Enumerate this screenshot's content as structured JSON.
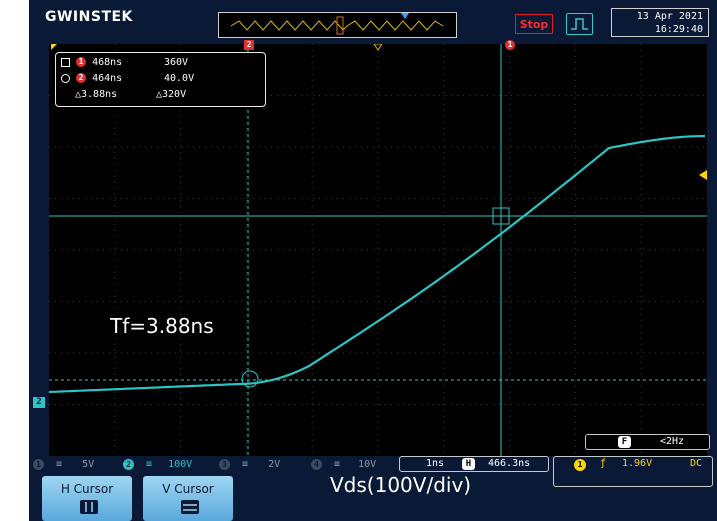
{
  "brand": "GWINSTEK",
  "header": {
    "run_state": "Stop",
    "trigger_mode_icon": "pulse-icon",
    "date": "13 Apr 2021",
    "time": "16:29:40"
  },
  "cursor_readout": {
    "cursor1": {
      "time": "468ns",
      "value": "360V"
    },
    "cursor2": {
      "time": "464ns",
      "value": "40.0V"
    },
    "delta": {
      "time": "△3.88ns",
      "value": "△320V"
    }
  },
  "annotations": {
    "tf": "Tf=3.88ns",
    "vds": "Vds(100V/div)"
  },
  "markers": {
    "cursor1_marker": "1",
    "cursor2_marker": "2",
    "ch2_ground_marker": "2"
  },
  "channels": [
    {
      "id": "1",
      "coupling": "≡",
      "scale": "5V",
      "active": false
    },
    {
      "id": "2",
      "coupling": "≡",
      "scale": "100V",
      "active": true
    },
    {
      "id": "3",
      "coupling": "≡",
      "scale": "2V",
      "active": false
    },
    {
      "id": "4",
      "coupling": "≡",
      "scale": "10V",
      "active": false
    }
  ],
  "timebase": {
    "scale": "1ns",
    "position_icon": "H",
    "position": "466.3ns"
  },
  "trigger": {
    "source": "1",
    "slope_icon": "rising-edge-icon",
    "level": "1.96V",
    "coupling": "DC"
  },
  "frequency": {
    "icon_label": "F",
    "value": "<2Hz"
  },
  "softkeys": [
    {
      "label": "H Cursor",
      "icon": "h-cursor-icon",
      "active": true
    },
    {
      "label": "V Cursor",
      "icon": "v-cursor-icon",
      "active": false
    }
  ],
  "colors": {
    "ch2_trace": "#2ec4c4",
    "background": "#0a1a36",
    "stop": "#ff2a2a",
    "trigger": "#ffd400"
  }
}
